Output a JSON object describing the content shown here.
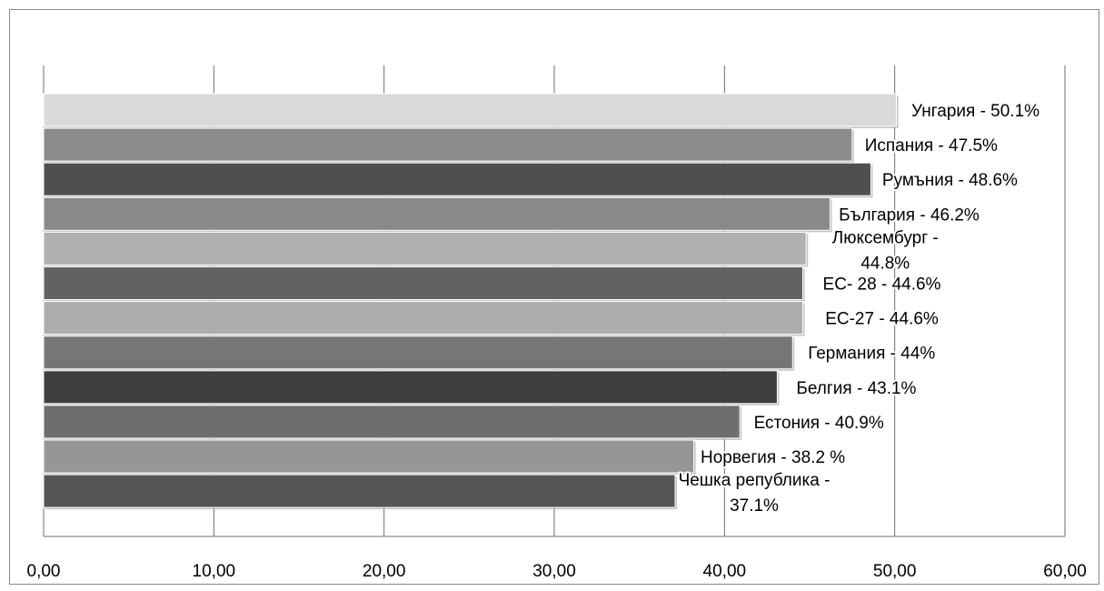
{
  "chart_data": {
    "type": "bar",
    "orientation": "horizontal",
    "categories": [
      "Унгария - 50.1%",
      "Испания - 47.5%",
      "Румъния - 48.6%",
      "България - 46.2%",
      "Люксембург - 44.8%",
      "ЕС- 28 - 44.6%",
      "ЕС-27 - 44.6%",
      "Германия - 44%",
      "Белгия - 43.1%",
      "Естония - 40.9%",
      "Норвегия - 38.2 %",
      "Чешка република - 37.1%"
    ],
    "label_lines": [
      [
        "Унгария - 50.1%"
      ],
      [
        "Испания - 47.5%"
      ],
      [
        "Румъния - 48.6%"
      ],
      [
        "България - 46.2%"
      ],
      [
        "Люксембург -",
        "44.8%"
      ],
      [
        "ЕС- 28 - 44.6%"
      ],
      [
        "ЕС-27 - 44.6%"
      ],
      [
        "Германия - 44%"
      ],
      [
        "Белгия - 43.1%"
      ],
      [
        "Естония - 40.9%"
      ],
      [
        "Норвегия - 38.2 %"
      ],
      [
        "Чешка република -",
        "37.1%"
      ]
    ],
    "values": [
      50.1,
      47.5,
      48.6,
      46.2,
      44.8,
      44.6,
      44.6,
      44.0,
      43.1,
      40.9,
      38.2,
      37.1
    ],
    "bar_colors": [
      "#d9d9d9",
      "#8c8c8c",
      "#4f4f4f",
      "#898989",
      "#b0b0b0",
      "#626262",
      "#adadad",
      "#767676",
      "#3e3e3e",
      "#6e6e6e",
      "#969696",
      "#555555"
    ],
    "tick_labels": [
      "0,00",
      "10,00",
      "20,00",
      "30,00",
      "40,00",
      "50,00",
      "60,00"
    ],
    "xlim": [
      0,
      60
    ],
    "grid": true,
    "title": "",
    "xlabel": "",
    "ylabel": ""
  }
}
